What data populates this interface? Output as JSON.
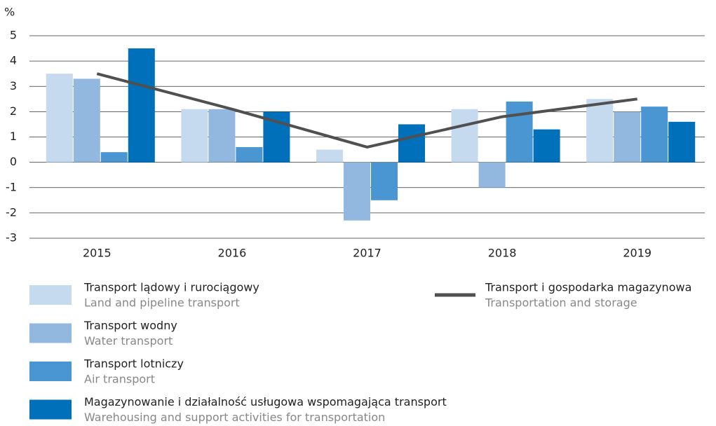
{
  "chart_data": {
    "type": "bar",
    "y_label": "%",
    "categories": [
      "2015",
      "2016",
      "2017",
      "2018",
      "2019"
    ],
    "ylim": [
      -3,
      5
    ],
    "yticks": [
      -3,
      -2,
      -1,
      0,
      1,
      2,
      3,
      4,
      5
    ],
    "grid": true,
    "series": [
      {
        "name": "Transport lądowy i rurociągowy",
        "name_en": "Land and pipeline transport",
        "color": "#c5d9ef",
        "values": [
          3.5,
          2.1,
          0.5,
          2.1,
          2.5
        ]
      },
      {
        "name": "Transport wodny",
        "name_en": "Water transport",
        "color": "#93b8e0",
        "values": [
          3.3,
          2.1,
          -2.3,
          -1.0,
          2.0
        ]
      },
      {
        "name": "Transport lotniczy",
        "name_en": "Air transport",
        "color": "#4a96d2",
        "values": [
          0.4,
          0.6,
          -1.5,
          2.4,
          2.2
        ]
      },
      {
        "name": "Magazynowanie i działalność usługowa wspomagająca transport",
        "name_en": "Warehousing and support activities for transportation",
        "color": "#0070ba",
        "values": [
          4.5,
          2.0,
          1.5,
          1.3,
          1.6
        ]
      },
      {
        "name": "Transport i gospodarka magazynowa",
        "name_en": "Transportation and storage",
        "color": "#505050",
        "type": "line",
        "values": [
          3.5,
          2.1,
          0.6,
          1.8,
          2.5
        ]
      }
    ]
  }
}
